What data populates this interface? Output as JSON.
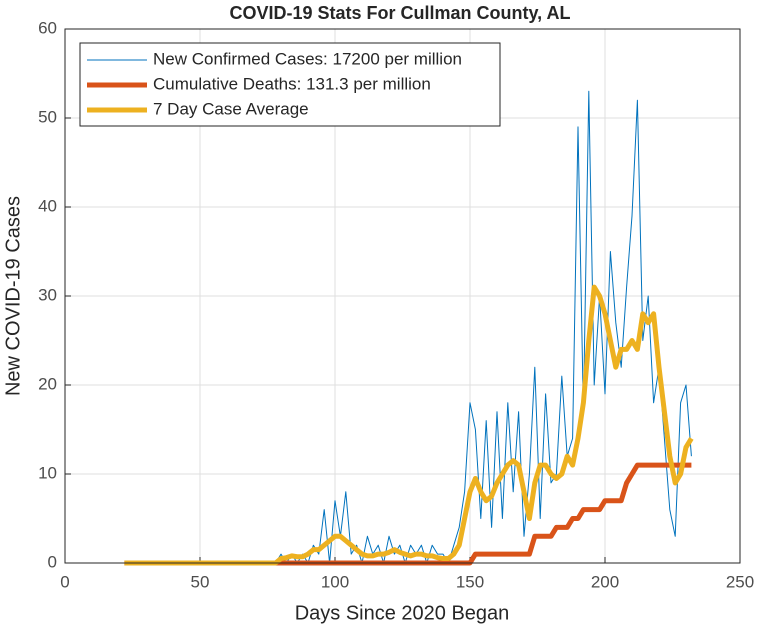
{
  "chart_data": {
    "type": "line",
    "title": "COVID-19 Stats For Cullman County, AL",
    "xlabel": "Days Since 2020 Began",
    "ylabel": "New COVID-19 Cases",
    "x": [
      22,
      24,
      26,
      28,
      30,
      32,
      34,
      36,
      38,
      40,
      42,
      44,
      46,
      48,
      50,
      52,
      54,
      56,
      58,
      60,
      62,
      64,
      66,
      68,
      70,
      72,
      74,
      76,
      78,
      80,
      82,
      84,
      86,
      88,
      90,
      92,
      94,
      96,
      98,
      100,
      102,
      104,
      106,
      108,
      110,
      112,
      114,
      116,
      118,
      120,
      122,
      124,
      126,
      128,
      130,
      132,
      134,
      136,
      138,
      140,
      142,
      144,
      146,
      148,
      150,
      152,
      154,
      156,
      158,
      160,
      162,
      164,
      166,
      168,
      170,
      172,
      174,
      176,
      178,
      180,
      182,
      184,
      186,
      188,
      190,
      192,
      194,
      196,
      198,
      200,
      202,
      204,
      206,
      208,
      210,
      212,
      214,
      216,
      218,
      220,
      222,
      224,
      226,
      228,
      230,
      232
    ],
    "series": [
      {
        "name": "New Confirmed Cases: 17200 per million",
        "color": "#0072BD",
        "width": 1,
        "values": [
          0,
          0,
          0,
          0,
          0,
          0,
          0,
          0,
          0,
          0,
          0,
          0,
          0,
          0,
          0,
          0,
          0,
          0,
          0,
          0,
          0,
          0,
          0,
          0,
          0,
          0,
          0,
          0,
          0,
          1,
          0,
          1,
          0,
          1,
          0,
          2,
          1,
          6,
          0,
          7,
          3,
          8,
          1,
          2,
          0,
          3,
          1,
          2,
          0,
          3,
          1,
          2,
          0,
          2,
          1,
          2,
          0,
          2,
          1,
          1,
          0,
          2,
          4,
          8,
          18,
          15,
          5,
          16,
          4,
          17,
          5,
          18,
          8,
          17,
          3,
          10,
          22,
          5,
          19,
          9,
          10,
          21,
          12,
          14,
          49,
          17,
          53,
          20,
          30,
          19,
          35,
          27,
          22,
          31,
          39,
          52,
          25,
          30,
          18,
          22,
          14,
          6,
          3,
          18,
          20,
          12
        ]
      },
      {
        "name": "Cumulative Deaths: 131.3 per million",
        "color": "#D95319",
        "width": 5,
        "values": [
          0,
          0,
          0,
          0,
          0,
          0,
          0,
          0,
          0,
          0,
          0,
          0,
          0,
          0,
          0,
          0,
          0,
          0,
          0,
          0,
          0,
          0,
          0,
          0,
          0,
          0,
          0,
          0,
          0,
          0,
          0,
          0,
          0,
          0,
          0,
          0,
          0,
          0,
          0,
          0,
          0,
          0,
          0,
          0,
          0,
          0,
          0,
          0,
          0,
          0,
          0,
          0,
          0,
          0,
          0,
          0,
          0,
          0,
          0,
          0,
          0,
          0,
          0,
          0,
          0,
          1,
          1,
          1,
          1,
          1,
          1,
          1,
          1,
          1,
          1,
          1,
          3,
          3,
          3,
          3,
          4,
          4,
          4,
          5,
          5,
          6,
          6,
          6,
          6,
          7,
          7,
          7,
          7,
          9,
          10,
          11,
          11,
          11,
          11,
          11,
          11,
          11,
          11,
          11,
          11,
          11
        ]
      },
      {
        "name": "7 Day Case Average",
        "color": "#EDB120",
        "width": 5,
        "values": [
          0,
          0,
          0,
          0,
          0,
          0,
          0,
          0,
          0,
          0,
          0,
          0,
          0,
          0,
          0,
          0,
          0,
          0,
          0,
          0,
          0,
          0,
          0,
          0,
          0,
          0,
          0,
          0,
          0,
          0.5,
          0.6,
          0.8,
          0.7,
          0.7,
          1,
          1.5,
          1.5,
          2,
          2.5,
          3,
          3,
          2.5,
          2,
          1.5,
          1,
          0.8,
          0.8,
          1,
          1,
          1.2,
          1.5,
          1.2,
          1,
          0.8,
          1,
          1,
          0.8,
          0.8,
          0.6,
          0.5,
          0.5,
          1,
          2,
          5,
          8,
          9.5,
          8,
          7,
          7.5,
          9,
          10,
          11,
          11.5,
          11,
          8,
          5,
          9,
          11,
          11,
          10,
          9.5,
          10,
          12,
          11,
          14,
          18,
          25,
          31,
          30,
          28,
          25,
          22,
          24,
          24,
          25,
          24,
          28,
          27,
          28,
          22,
          17,
          12,
          9,
          10,
          13,
          14
        ]
      }
    ],
    "xlim": [
      0,
      250
    ],
    "xticks": [
      0,
      50,
      100,
      150,
      200,
      250
    ],
    "ylim": [
      0,
      60
    ],
    "yticks": [
      0,
      10,
      20,
      30,
      40,
      50,
      60
    ],
    "grid": true,
    "legend": "northwest"
  }
}
